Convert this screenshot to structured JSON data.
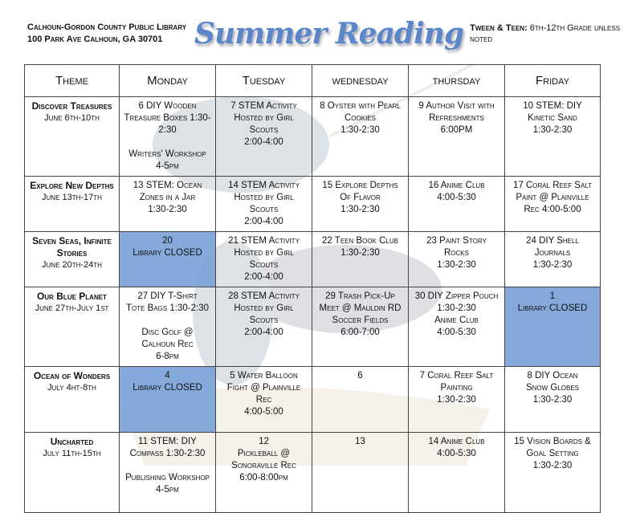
{
  "header": {
    "library": "Calhoun-Gordon County Public Library",
    "address": "100 Park Ave    Calhoun, GA 30701",
    "title": "Summer Reading",
    "audience_label": "Tween & Teen:",
    "audience": "6th-12th Grade unless noted"
  },
  "columns": [
    "Theme",
    "Monday",
    "Tuesday",
    "wednesday",
    "thursday",
    "Friday"
  ],
  "highlight_color": "#7fa3d6",
  "rows": [
    {
      "theme": "Discover Treasures",
      "dates": "June 6th-10th",
      "cells": [
        {
          "text": "6    DIY Wooden\nTreasure Boxes 1:30-2:30\n\nWriters' Workshop 4-5pm"
        },
        {
          "text": "7  STEM Activity\nHosted by Girl Scouts\n2:00-4:00"
        },
        {
          "text": "8  Oyster with Pearl\nCookies\n1:30-2:30"
        },
        {
          "text": "9  Author Visit with\nRefreshments\n6:00PM"
        },
        {
          "text": "10    STEM: DIY\nKinetic Sand\n1:30-2:30"
        }
      ]
    },
    {
      "theme": "Explore New Depths",
      "dates": "June 13th-17th",
      "cells": [
        {
          "text": "13  STEM: Ocean\nZones in a Jar\n1:30-2:30"
        },
        {
          "text": "14  STEM Activity\nHosted by Girl Scouts\n2:00-4:00"
        },
        {
          "text": "15  Explore Depths\nOf Flavor\n1:30-2:30"
        },
        {
          "text": "16    Anime Club\n4:00-5:30"
        },
        {
          "text": "17 Coral Reef Salt\nPaint @ Plainville\nRec  4:00-5:00"
        }
      ]
    },
    {
      "theme": "Seven Seas, Infinite Stories",
      "dates": "June 20th-24th",
      "cells": [
        {
          "text": "20\nLibrary CLOSED",
          "closed": true
        },
        {
          "text": "21 STEM Activity\nHosted by Girl Scouts\n2:00-4:00"
        },
        {
          "text": "22  Teen Book Club\n1:30-2:30"
        },
        {
          "text": "23  Paint Story\nRocks\n1:30-2:30"
        },
        {
          "text": "24    DIY Shell\nJournals\n1:30-2:30"
        }
      ]
    },
    {
      "theme": "Our Blue Planet",
      "dates": "June 27th-July 1st",
      "cells": [
        {
          "text": "27  DIY T-Shirt\nTote Bags 1:30-2:30\n\nDisc Golf @ Calhoun Rec\n6-8pm"
        },
        {
          "text": "28 STEM Activity\nHosted by Girl Scouts\n2:00-4:00"
        },
        {
          "text": "29  Trash Pick-Up\nMeet @ Mauldin RD\nSoccer Fields\n6:00-7:00"
        },
        {
          "text": "30  DIY Zipper Pouch\n1:30-2:30\nAnime Club\n4:00-5:30"
        },
        {
          "text": "1\nLibrary CLOSED",
          "closed": true
        }
      ]
    },
    {
      "theme": "Ocean of Wonders",
      "dates": "July 4ht-8th",
      "cells": [
        {
          "text": "4\nLibrary CLOSED",
          "closed": true
        },
        {
          "text": "5  Water Balloon\nFight @ Plainville Rec\n4:00-5:00"
        },
        {
          "text": "6"
        },
        {
          "text": "7  Coral Reef Salt\nPainting\n1:30-2:30"
        },
        {
          "text": "8    DIY Ocean\nSnow Globes\n1:30-2:30"
        }
      ]
    },
    {
      "theme": "Uncharted",
      "dates": "July 11th-15th",
      "cells": [
        {
          "text": "11    STEM: DIY\nCompass  1:30-2:30\n\nPublishing Workshop\n4-5pm"
        },
        {
          "text": "12\nPickleball @\nSonoraville Rec\n6:00-8:00pm"
        },
        {
          "text": "13"
        },
        {
          "text": "14    Anime Club\n4:00-5:30"
        },
        {
          "text": "15  Vision Boards &\nGoal Setting\n1:30-2:30"
        }
      ]
    }
  ]
}
